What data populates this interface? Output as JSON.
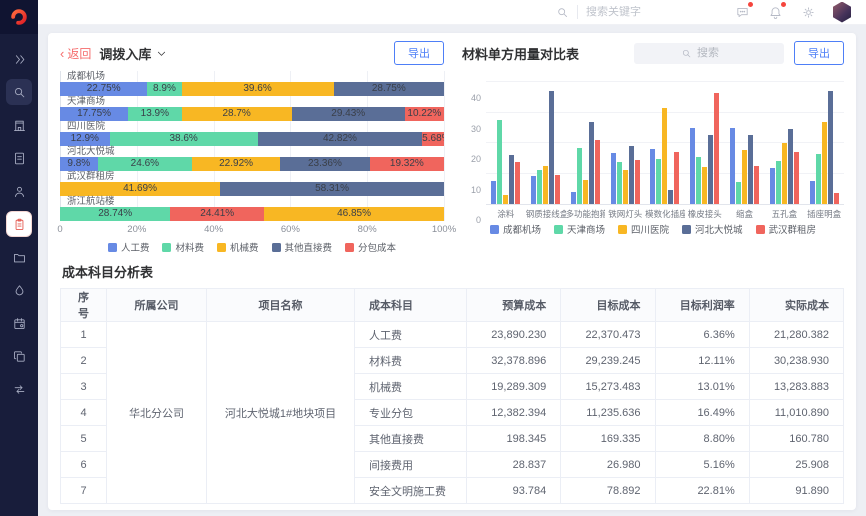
{
  "colors": {
    "blue": "#678AE4",
    "green": "#5FD8A8",
    "yellow": "#F8B723",
    "slate": "#5A6E97",
    "red": "#F0655D",
    "sidebar_bg": "#181d3b",
    "accent_red": "#e4574e",
    "export_blue": "#4e7ff7"
  },
  "topbar": {
    "search_placeholder": "搜索关键字"
  },
  "left_panel": {
    "back_label": "返回",
    "title": "调拨入库",
    "export_label": "导出"
  },
  "right_panel": {
    "title": "材料单方用量对比表",
    "search_placeholder": "搜索",
    "export_label": "导出"
  },
  "chart_data": [
    {
      "type": "bar",
      "variant": "horizontal-stacked-percent",
      "title": "调拨入库",
      "categories": [
        "成都机场",
        "天津商场",
        "四川医院",
        "河北大悦城",
        "武汉群租房",
        "浙江航站楼"
      ],
      "series_legend": [
        "人工费",
        "材料费",
        "机械费",
        "其他直接费",
        "分包成本"
      ],
      "legend_colors": [
        "#678AE4",
        "#5FD8A8",
        "#F8B723",
        "#5A6E97",
        "#F0655D"
      ],
      "x_ticks": [
        "0",
        "20%",
        "40%",
        "60%",
        "80%",
        "100%"
      ],
      "xlim": [
        0,
        100
      ],
      "bars": [
        {
          "category": "成都机场",
          "segments": [
            {
              "series": "人工费",
              "value": 22.75,
              "label": "22.75%"
            },
            {
              "series": "材料费",
              "value": 8.9,
              "label": "8.9%"
            },
            {
              "series": "机械费",
              "value": 39.6,
              "label": "39.6%"
            },
            {
              "series": "其他直接费",
              "value": 28.75,
              "label": "28.75%"
            }
          ]
        },
        {
          "category": "天津商场",
          "segments": [
            {
              "series": "人工费",
              "value": 17.75,
              "label": "17.75%"
            },
            {
              "series": "材料费",
              "value": 13.9,
              "label": "13.9%"
            },
            {
              "series": "机械费",
              "value": 28.7,
              "label": "28.7%"
            },
            {
              "series": "其他直接费",
              "value": 29.43,
              "label": "29.43%"
            },
            {
              "series": "分包成本",
              "value": 10.22,
              "label": "10.22%"
            }
          ]
        },
        {
          "category": "四川医院",
          "segments": [
            {
              "series": "人工费",
              "value": 12.9,
              "label": "12.9%"
            },
            {
              "series": "材料费",
              "value": 38.6,
              "label": "38.6%"
            },
            {
              "series": "其他直接费",
              "value": 42.82,
              "label": "42.82%"
            },
            {
              "series": "分包成本",
              "value": 5.68,
              "label": "5.68%"
            }
          ]
        },
        {
          "category": "河北大悦城",
          "segments": [
            {
              "series": "人工费",
              "value": 9.8,
              "label": "9.8%"
            },
            {
              "series": "材料费",
              "value": 24.6,
              "label": "24.6%"
            },
            {
              "series": "机械费",
              "value": 22.92,
              "label": "22.92%"
            },
            {
              "series": "其他直接费",
              "value": 23.36,
              "label": "23.36%"
            },
            {
              "series": "分包成本",
              "value": 19.32,
              "label": "19.32%"
            }
          ]
        },
        {
          "category": "武汉群租房",
          "segments": [
            {
              "series": "机械费",
              "value": 41.69,
              "label": "41.69%"
            },
            {
              "series": "其他直接费",
              "value": 58.31,
              "label": "58.31%"
            }
          ]
        },
        {
          "category": "浙江航站楼",
          "segments": [
            {
              "series": "材料费",
              "value": 28.74,
              "label": "28.74%"
            },
            {
              "series": "分包成本",
              "value": 24.41,
              "label": "24.41%"
            },
            {
              "series": "机械费",
              "value": 46.85,
              "label": "46.85%"
            }
          ]
        }
      ]
    },
    {
      "type": "bar",
      "variant": "grouped-vertical",
      "title": "材料单方用量对比表",
      "categories": [
        "涂料",
        "钢质接线盒",
        "多功能抱箍",
        "铁网灯头",
        "模数化插座",
        "橡皮接头",
        "缩盒",
        "五孔盒",
        "插座明盒"
      ],
      "y_ticks": [
        "0",
        "10",
        "20",
        "30",
        "40"
      ],
      "ylim": [
        0,
        40
      ],
      "series": [
        {
          "name": "成都机场",
          "color": "#678AE4",
          "values": [
            7.5,
            9.3,
            3.8,
            16.6,
            18,
            25,
            25,
            11.8,
            7.7
          ]
        },
        {
          "name": "天津商场",
          "color": "#5FD8A8",
          "values": [
            27.5,
            11,
            18.3,
            13.9,
            14.7,
            15.5,
            7.2,
            14,
            16.5
          ]
        },
        {
          "name": "四川医院",
          "color": "#F8B723",
          "values": [
            2.8,
            12.5,
            8,
            11,
            31.5,
            12.3,
            17.8,
            20,
            27
          ]
        },
        {
          "name": "河北大悦城",
          "color": "#5A6E97",
          "values": [
            16,
            37,
            27,
            19,
            4.7,
            22.7,
            22.7,
            24.5,
            37
          ]
        },
        {
          "name": "武汉群租房",
          "color": "#F0655D",
          "values": [
            13.8,
            9.4,
            21,
            14.5,
            17,
            36.5,
            12.5,
            17.2,
            3.7
          ]
        }
      ]
    }
  ],
  "table": {
    "title": "成本科目分析表",
    "headers": [
      "序号",
      "所属公司",
      "项目名称",
      "成本科目",
      "预算成本",
      "目标成本",
      "目标利润率",
      "实际成本"
    ],
    "company": "华北分公司",
    "project": "河北大悦城1#地块项目",
    "rows": [
      {
        "no": "1",
        "subject": "人工费",
        "budget": "23,890.230",
        "target": "22,370.473",
        "rate": "6.36%",
        "actual": "21,280.382"
      },
      {
        "no": "2",
        "subject": "材料费",
        "budget": "32,378.896",
        "target": "29,239.245",
        "rate": "12.11%",
        "actual": "30,238.930"
      },
      {
        "no": "3",
        "subject": "机械费",
        "budget": "19,289.309",
        "target": "15,273.483",
        "rate": "13.01%",
        "actual": "13,283.883"
      },
      {
        "no": "4",
        "subject": "专业分包",
        "budget": "12,382.394",
        "target": "11,235.636",
        "rate": "16.49%",
        "actual": "11,010.890"
      },
      {
        "no": "5",
        "subject": "其他直接费",
        "budget": "198.345",
        "target": "169.335",
        "rate": "8.80%",
        "actual": "160.780"
      },
      {
        "no": "6",
        "subject": "间接费用",
        "budget": "28.837",
        "target": "26.980",
        "rate": "5.16%",
        "actual": "25.908"
      },
      {
        "no": "7",
        "subject": "安全文明施工费",
        "budget": "93.784",
        "target": "78.892",
        "rate": "22.81%",
        "actual": "91.890"
      }
    ]
  }
}
